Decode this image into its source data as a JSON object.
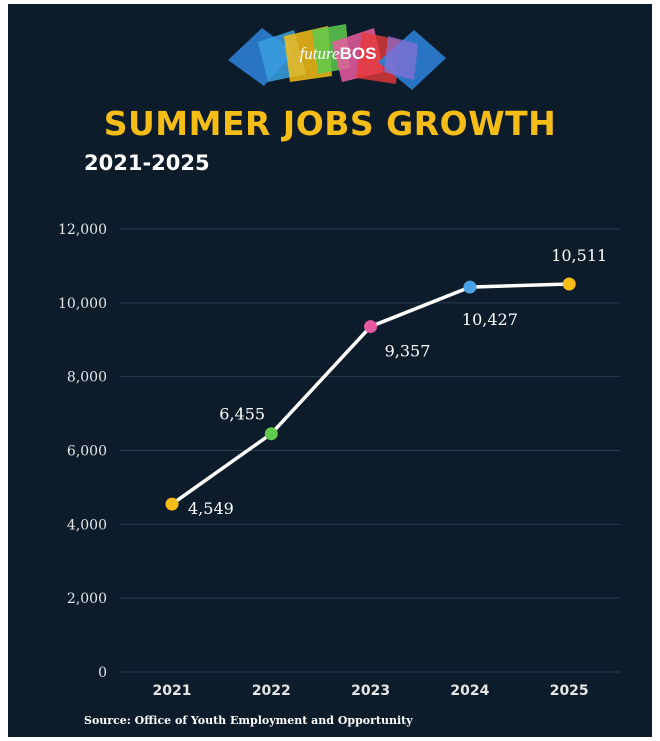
{
  "header": {
    "logo_part1": "future",
    "logo_part2": "BOS",
    "title": "SUMMER JOBS GROWTH",
    "subtitle": "2021-2025"
  },
  "footer": {
    "source": "Source: Office of Youth Employment and Opportunity"
  },
  "colors": {
    "background": "#0d1c2a",
    "title": "#f6bd16",
    "line": "#ffffff"
  },
  "chart_data": {
    "type": "line",
    "x": [
      "2021",
      "2022",
      "2023",
      "2024",
      "2025"
    ],
    "values": [
      4549,
      6455,
      9357,
      10427,
      10511
    ],
    "data_labels": [
      "4,549",
      "6,455",
      "9,357",
      "10,427",
      "10,511"
    ],
    "point_colors": [
      "#f6bd16",
      "#5ecb4f",
      "#e85aa0",
      "#4aa3e8",
      "#f6bd16"
    ],
    "yticks": [
      "0",
      "2,000",
      "4,000",
      "6,000",
      "8,000",
      "10,000",
      "12,000"
    ],
    "ylim": [
      0,
      12000
    ],
    "grid": true,
    "legend": "none",
    "xlabel": "",
    "ylabel": ""
  }
}
